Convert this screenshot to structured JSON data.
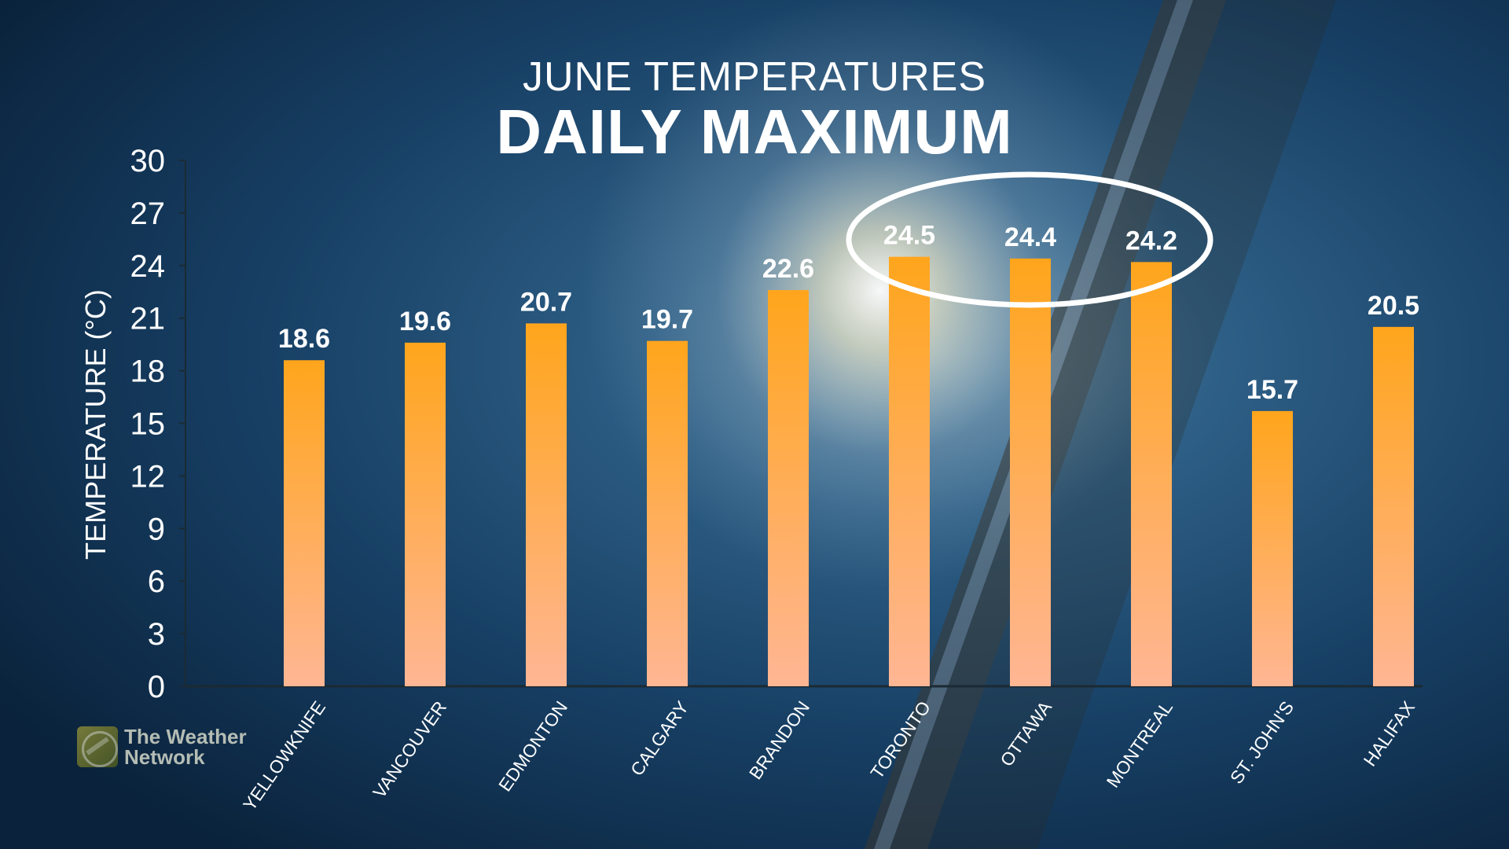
{
  "title": {
    "line1": "JUNE TEMPERATURES",
    "line2": "DAILY MAXIMUM"
  },
  "logo": {
    "line1": "The Weather",
    "line2": "Network"
  },
  "colors": {
    "bar_top": "#ffa51c",
    "bar_bottom": "#ffb694",
    "text": "#ffffff",
    "background": "#0b2a45",
    "highlight_ellipse": "#ffffff"
  },
  "icons": {
    "logo": "globe-swirl-icon"
  },
  "chart_data": {
    "type": "bar",
    "title": "JUNE TEMPERATURES DAILY MAXIMUM",
    "xlabel": "",
    "ylabel": "TEMPERATURE (°C)",
    "ylim": [
      0,
      30
    ],
    "yticks": [
      0,
      3,
      6,
      9,
      12,
      15,
      18,
      21,
      24,
      27,
      30
    ],
    "grid": false,
    "categories": [
      "YELLOWKNIFE",
      "VANCOUVER",
      "EDMONTON",
      "CALGARY",
      "BRANDON",
      "TORONTO",
      "OTTAWA",
      "MONTREAL",
      "ST. JOHN'S",
      "HALIFAX"
    ],
    "values": [
      18.6,
      19.6,
      20.7,
      19.7,
      22.6,
      24.5,
      24.4,
      24.2,
      15.7,
      20.5
    ],
    "data_labels": [
      "18.6",
      "19.6",
      "20.7",
      "19.7",
      "22.6",
      "24.5",
      "24.4",
      "24.2",
      "15.7",
      "20.5"
    ],
    "highlighted": [
      "TORONTO",
      "OTTAWA",
      "MONTREAL"
    ]
  }
}
